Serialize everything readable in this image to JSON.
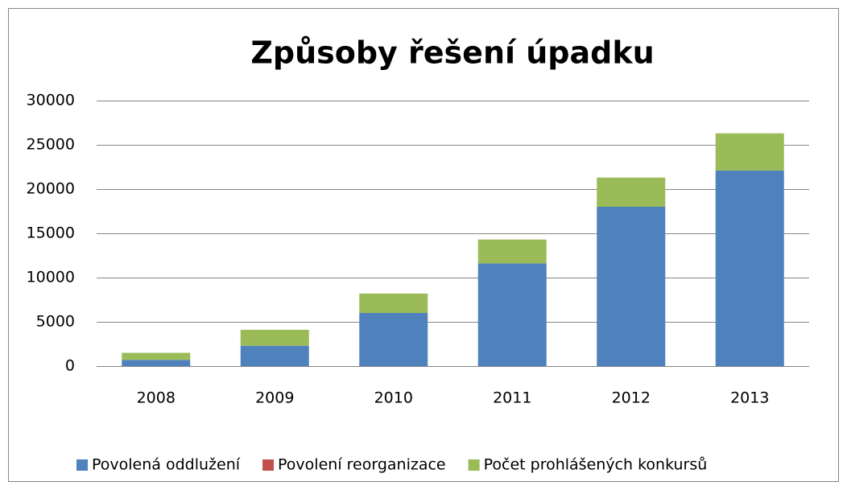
{
  "chart_data": {
    "type": "stacked_bar",
    "title": "Způsoby řešení úpadku",
    "categories": [
      "2008",
      "2009",
      "2010",
      "2011",
      "2012",
      "2013"
    ],
    "series": [
      {
        "name": "Povolená oddlužení",
        "color": "#4f81bd",
        "values": [
          700,
          2300,
          6000,
          11600,
          18000,
          22100
        ]
      },
      {
        "name": "Povolení reorganizace",
        "color": "#c0504d",
        "values": [
          0,
          0,
          0,
          0,
          0,
          0
        ]
      },
      {
        "name": "Počet prohlášených konkursů",
        "color": "#9bbb59",
        "values": [
          800,
          1800,
          2200,
          2700,
          3300,
          4200
        ]
      }
    ],
    "ylim": [
      0,
      30000
    ],
    "yticks": [
      0,
      5000,
      10000,
      15000,
      20000,
      25000,
      30000
    ],
    "grid": true,
    "legend": "bottom"
  }
}
